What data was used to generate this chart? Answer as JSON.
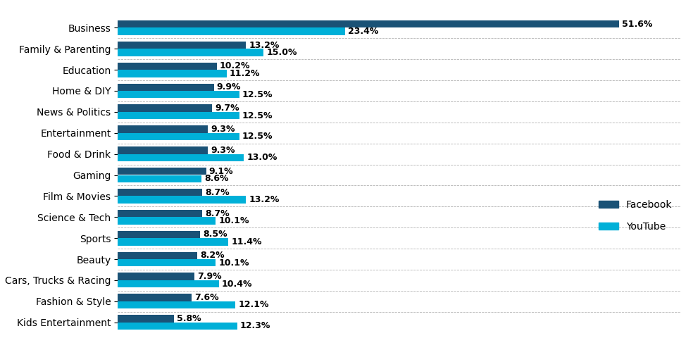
{
  "categories": [
    "Business",
    "Family & Parenting",
    "Education",
    "Home & DIY",
    "News & Politics",
    "Entertainment",
    "Food & Drink",
    "Gaming",
    "Film & Movies",
    "Science & Tech",
    "Sports",
    "Beauty",
    "Cars, Trucks & Racing",
    "Fashion & Style",
    "Kids Entertainment"
  ],
  "facebook": [
    51.6,
    13.2,
    10.2,
    9.9,
    9.7,
    9.3,
    9.3,
    9.1,
    8.7,
    8.7,
    8.5,
    8.2,
    7.9,
    7.6,
    5.8
  ],
  "youtube": [
    23.4,
    15.0,
    11.2,
    12.5,
    12.5,
    12.5,
    13.0,
    8.6,
    13.2,
    10.1,
    11.4,
    10.1,
    10.4,
    12.1,
    12.3
  ],
  "facebook_color": "#1a5276",
  "youtube_color": "#00b0d8",
  "background_color": "#ffffff",
  "bar_height": 0.35,
  "xlim": [
    0,
    58
  ],
  "legend_facebook": "Facebook",
  "legend_youtube": "YouTube",
  "text_color": "#000000",
  "label_fontsize": 9,
  "tick_fontsize": 10,
  "legend_fontsize": 10
}
